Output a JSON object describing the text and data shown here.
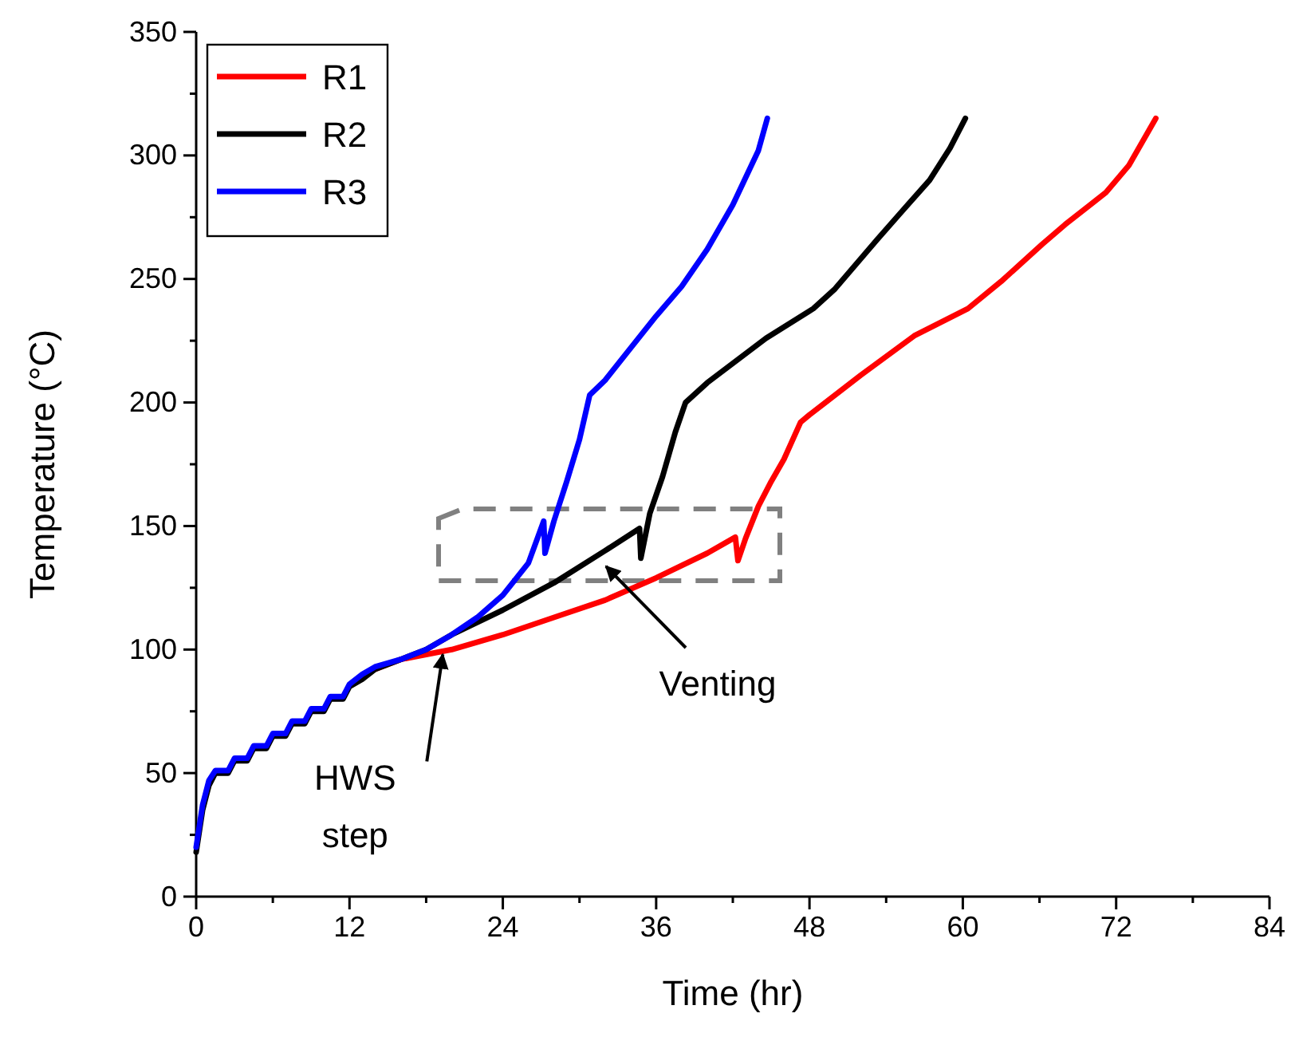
{
  "chart_data": {
    "type": "line",
    "xlabel": "Time (hr)",
    "ylabel": "Temperature (°C)",
    "xlim": [
      0,
      84
    ],
    "xticks": [
      0,
      12,
      24,
      36,
      48,
      60,
      72,
      84
    ],
    "ylim": [
      0,
      350
    ],
    "yticks": [
      0,
      50,
      100,
      150,
      200,
      250,
      300,
      350
    ],
    "grid": false,
    "legend": "top left",
    "line_style": "solid",
    "marker": "none",
    "annotations": [
      {
        "text": "HWS\nstep",
        "x": 19.3,
        "y": 98
      },
      "Venting"
    ],
    "series": [
      {
        "name": "R1",
        "color": "#ff0000",
        "x": [
          14,
          16,
          18,
          20,
          24,
          28,
          32,
          36,
          40,
          42.2,
          42.4,
          43,
          44,
          45,
          46,
          47.3,
          48,
          52,
          56.2,
          60.4,
          63,
          66.2,
          68,
          71.2,
          73,
          75.1
        ],
        "values": [
          92,
          96,
          98,
          100,
          106,
          113,
          120,
          129,
          139,
          145.5,
          136,
          145,
          158,
          168,
          177,
          192,
          195,
          211,
          227,
          238,
          249,
          264,
          272,
          285,
          296,
          315
        ]
      },
      {
        "name": "R2",
        "color": "#000000",
        "x": [
          0,
          0.5,
          1,
          1.5,
          2.5,
          3,
          4,
          4.5,
          5.5,
          6,
          7,
          7.5,
          8.5,
          9,
          10,
          10.5,
          11.5,
          12,
          13,
          14,
          16,
          18,
          20,
          24,
          28,
          32,
          34.7,
          34.8,
          35.5,
          36.5,
          37.5,
          38.3,
          40,
          44.6,
          48.3,
          50,
          53.3,
          55,
          57.4,
          59,
          60.2
        ],
        "values": [
          18,
          35,
          45,
          50,
          50,
          55,
          55,
          60,
          60,
          65,
          65,
          70,
          70,
          75,
          75,
          80,
          80,
          85,
          88,
          92,
          96,
          100,
          106,
          116,
          127,
          140,
          149,
          137,
          155,
          170,
          188,
          200,
          208,
          226,
          238,
          246,
          266,
          276,
          290,
          303,
          315
        ]
      },
      {
        "name": "R3",
        "color": "#0000ff",
        "x": [
          0,
          0.5,
          1,
          1.5,
          2.5,
          3,
          4,
          4.5,
          5.5,
          6,
          7,
          7.5,
          8.5,
          9,
          10,
          10.5,
          11.5,
          12,
          13,
          14,
          16,
          18,
          20,
          22,
          24,
          26,
          27.2,
          27.3,
          28,
          29,
          30,
          30.8,
          32,
          34,
          36,
          38,
          40,
          42,
          44,
          44.7
        ],
        "values": [
          20,
          37,
          47,
          51,
          51,
          56,
          56,
          61,
          61,
          66,
          66,
          71,
          71,
          76,
          76,
          81,
          81,
          86,
          90,
          93,
          96,
          100,
          106,
          113,
          122,
          135,
          152,
          139,
          152,
          168,
          185,
          203,
          209,
          222,
          235,
          247,
          262,
          280,
          302,
          315
        ]
      }
    ]
  }
}
